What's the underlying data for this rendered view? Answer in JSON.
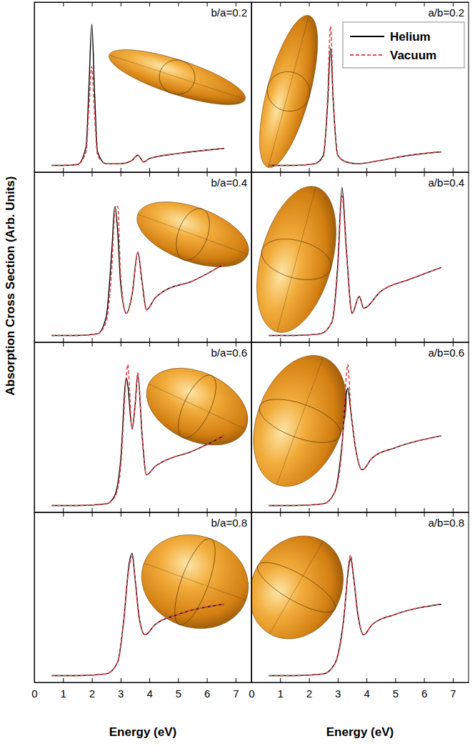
{
  "chart_data": [
    {
      "type": "line",
      "title": "b/a=0.2",
      "y_label": "Absorption Cross Section (Arb. Units)",
      "x": [
        0.6,
        1.0,
        1.5,
        1.8,
        1.9,
        2.0,
        2.1,
        2.2,
        2.5,
        3.0,
        3.4,
        3.6,
        3.8,
        4.0,
        5.0,
        6.0,
        6.6
      ],
      "series": [
        {
          "color": "#000000",
          "line_style": "solid",
          "values": [
            0.04,
            0.04,
            0.045,
            0.15,
            0.5,
            0.87,
            0.45,
            0.12,
            0.05,
            0.05,
            0.07,
            0.1,
            0.06,
            0.08,
            0.11,
            0.13,
            0.14
          ]
        },
        {
          "color": "#e8474d",
          "line_style": "dashed",
          "values": [
            0.04,
            0.04,
            0.045,
            0.12,
            0.38,
            0.62,
            0.33,
            0.1,
            0.05,
            0.05,
            0.07,
            0.1,
            0.06,
            0.08,
            0.11,
            0.13,
            0.14
          ]
        }
      ],
      "xlim": [
        0,
        7.55
      ],
      "xticks": [
        0,
        1,
        2,
        3,
        4,
        5,
        6,
        7
      ],
      "ylim": [
        0,
        1
      ],
      "tick_labels": false
    },
    {
      "type": "line",
      "title": "a/b=0.2",
      "legend": "top-right",
      "x": [
        0.6,
        1.5,
        2.2,
        2.5,
        2.65,
        2.75,
        2.85,
        3.0,
        3.3,
        3.7,
        4.5,
        5.5,
        6.6
      ],
      "series": [
        {
          "name": "Helium",
          "color": "#000000",
          "line_style": "solid",
          "values": [
            0.04,
            0.04,
            0.05,
            0.1,
            0.4,
            0.73,
            0.4,
            0.1,
            0.06,
            0.05,
            0.07,
            0.1,
            0.12
          ]
        },
        {
          "name": "Vacuum",
          "color": "#e8474d",
          "line_style": "dashed",
          "values": [
            0.04,
            0.04,
            0.05,
            0.09,
            0.45,
            0.86,
            0.42,
            0.1,
            0.06,
            0.05,
            0.07,
            0.1,
            0.12
          ]
        }
      ],
      "xlim": [
        0,
        7.55
      ],
      "xticks": [
        0,
        1,
        2,
        3,
        4,
        5,
        6,
        7
      ],
      "ylim": [
        0,
        1
      ],
      "tick_labels": false
    },
    {
      "type": "line",
      "title": "b/a=0.4",
      "x": [
        0.6,
        1.5,
        2.2,
        2.5,
        2.7,
        2.8,
        2.9,
        3.0,
        3.2,
        3.4,
        3.6,
        3.75,
        3.9,
        4.2,
        4.5,
        5.5,
        6.6
      ],
      "series": [
        {
          "color": "#000000",
          "line_style": "solid",
          "values": [
            0.04,
            0.04,
            0.05,
            0.15,
            0.55,
            0.8,
            0.65,
            0.35,
            0.17,
            0.28,
            0.53,
            0.35,
            0.19,
            0.26,
            0.3,
            0.36,
            0.46
          ]
        },
        {
          "color": "#e8474d",
          "line_style": "dashed",
          "values": [
            0.04,
            0.04,
            0.05,
            0.12,
            0.45,
            0.76,
            0.8,
            0.4,
            0.17,
            0.28,
            0.53,
            0.35,
            0.19,
            0.26,
            0.3,
            0.36,
            0.46
          ]
        }
      ],
      "xlim": [
        0,
        7.55
      ],
      "xticks": [
        0,
        1,
        2,
        3,
        4,
        5,
        6,
        7
      ],
      "ylim": [
        0,
        1
      ],
      "tick_labels": false
    },
    {
      "type": "line",
      "title": "a/b=0.4",
      "x": [
        0.6,
        1.5,
        2.4,
        2.8,
        3.0,
        3.15,
        3.3,
        3.5,
        3.75,
        3.9,
        4.5,
        5.5,
        6.6
      ],
      "series": [
        {
          "color": "#000000",
          "line_style": "solid",
          "values": [
            0.04,
            0.04,
            0.05,
            0.12,
            0.45,
            0.91,
            0.55,
            0.17,
            0.27,
            0.2,
            0.3,
            0.37,
            0.44
          ]
        },
        {
          "color": "#e8474d",
          "line_style": "dashed",
          "values": [
            0.04,
            0.04,
            0.05,
            0.12,
            0.42,
            0.86,
            0.53,
            0.17,
            0.27,
            0.2,
            0.3,
            0.37,
            0.44
          ]
        }
      ],
      "xlim": [
        0,
        7.55
      ],
      "xticks": [
        0,
        1,
        2,
        3,
        4,
        5,
        6,
        7
      ],
      "ylim": [
        0,
        1
      ],
      "tick_labels": false
    },
    {
      "type": "line",
      "title": "b/a=0.6",
      "x": [
        0.6,
        1.5,
        2.5,
        2.8,
        3.0,
        3.2,
        3.25,
        3.4,
        3.5,
        3.6,
        3.75,
        3.9,
        4.2,
        4.5,
        5.5,
        6.6
      ],
      "series": [
        {
          "color": "#000000",
          "line_style": "solid",
          "values": [
            0.04,
            0.04,
            0.05,
            0.1,
            0.3,
            0.79,
            0.75,
            0.49,
            0.62,
            0.81,
            0.45,
            0.22,
            0.27,
            0.3,
            0.36,
            0.45
          ]
        },
        {
          "color": "#e8474d",
          "line_style": "dashed",
          "values": [
            0.04,
            0.04,
            0.05,
            0.09,
            0.26,
            0.8,
            0.87,
            0.49,
            0.62,
            0.82,
            0.45,
            0.22,
            0.27,
            0.3,
            0.36,
            0.45
          ]
        }
      ],
      "xlim": [
        0,
        7.55
      ],
      "xticks": [
        0,
        1,
        2,
        3,
        4,
        5,
        6,
        7
      ],
      "ylim": [
        0,
        1
      ],
      "tick_labels": false
    },
    {
      "type": "line",
      "title": "a/b=0.6",
      "x": [
        0.6,
        1.5,
        2.5,
        2.9,
        3.15,
        3.3,
        3.35,
        3.45,
        3.6,
        3.85,
        4.2,
        5.0,
        6.6
      ],
      "series": [
        {
          "color": "#000000",
          "line_style": "solid",
          "values": [
            0.04,
            0.04,
            0.05,
            0.12,
            0.4,
            0.7,
            0.73,
            0.6,
            0.4,
            0.25,
            0.32,
            0.38,
            0.45
          ]
        },
        {
          "color": "#e8474d",
          "line_style": "dashed",
          "values": [
            0.04,
            0.04,
            0.05,
            0.12,
            0.38,
            0.8,
            0.87,
            0.62,
            0.4,
            0.25,
            0.32,
            0.38,
            0.45
          ]
        }
      ],
      "xlim": [
        0,
        7.55
      ],
      "xticks": [
        0,
        1,
        2,
        3,
        4,
        5,
        6,
        7
      ],
      "ylim": [
        0,
        1
      ],
      "tick_labels": false
    },
    {
      "type": "line",
      "title": "b/a=0.8",
      "x_label": "Energy (eV)",
      "x": [
        0.6,
        1.5,
        2.5,
        2.9,
        3.1,
        3.3,
        3.4,
        3.5,
        3.65,
        3.85,
        4.2,
        5.0,
        6.6
      ],
      "series": [
        {
          "color": "#000000",
          "line_style": "solid",
          "values": [
            0.04,
            0.04,
            0.05,
            0.12,
            0.35,
            0.7,
            0.76,
            0.62,
            0.38,
            0.28,
            0.34,
            0.4,
            0.46
          ]
        },
        {
          "color": "#e8474d",
          "line_style": "dashed",
          "values": [
            0.04,
            0.04,
            0.05,
            0.12,
            0.34,
            0.68,
            0.74,
            0.61,
            0.37,
            0.28,
            0.34,
            0.4,
            0.46
          ]
        }
      ],
      "xlim": [
        0,
        7.55
      ],
      "xticks": [
        0,
        1,
        2,
        3,
        4,
        5,
        6,
        7
      ],
      "ylim": [
        0,
        1
      ],
      "tick_labels": "x"
    },
    {
      "type": "line",
      "title": "a/b=0.8",
      "x_label": "Energy (eV)",
      "x": [
        0.6,
        1.5,
        2.5,
        2.9,
        3.2,
        3.4,
        3.45,
        3.55,
        3.7,
        3.9,
        4.2,
        5.0,
        6.6
      ],
      "series": [
        {
          "color": "#000000",
          "line_style": "solid",
          "values": [
            0.04,
            0.04,
            0.05,
            0.11,
            0.36,
            0.7,
            0.73,
            0.62,
            0.4,
            0.28,
            0.34,
            0.4,
            0.46
          ]
        },
        {
          "color": "#e8474d",
          "line_style": "dashed",
          "values": [
            0.04,
            0.04,
            0.05,
            0.11,
            0.35,
            0.72,
            0.75,
            0.63,
            0.41,
            0.28,
            0.34,
            0.4,
            0.46
          ]
        }
      ],
      "xlim": [
        0,
        7.55
      ],
      "xticks": [
        0,
        1,
        2,
        3,
        4,
        5,
        6,
        7
      ],
      "ylim": [
        0,
        1
      ],
      "tick_labels": "x"
    }
  ]
}
